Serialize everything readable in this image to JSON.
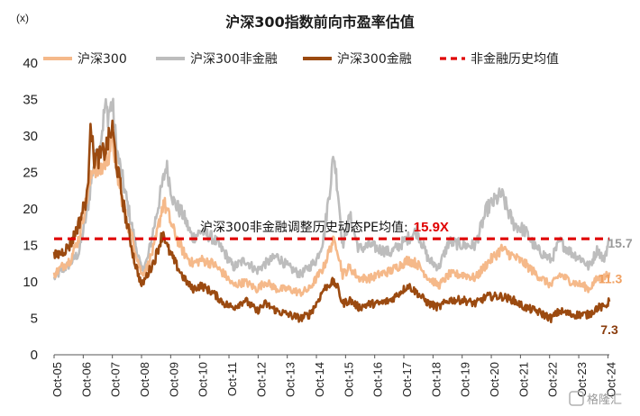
{
  "chart_data": {
    "type": "line",
    "title": "沪深300指数前向市盈率估值",
    "unit_label": "(x)",
    "ylim": [
      0,
      40
    ],
    "y_ticks": [
      "0",
      "5",
      "10",
      "15",
      "20",
      "25",
      "30",
      "35",
      "40"
    ],
    "x_ticks": [
      "Oct-05",
      "Oct-06",
      "Oct-07",
      "Oct-08",
      "Oct-09",
      "Oct-10",
      "Oct-11",
      "Oct-12",
      "Oct-13",
      "Oct-14",
      "Oct-15",
      "Oct-16",
      "Oct-17",
      "Oct-18",
      "Oct-19",
      "Oct-20",
      "Oct-21",
      "Oct-22",
      "Oct-23",
      "Oct-24"
    ],
    "x_range": [
      2005.75,
      2024.8
    ],
    "grid": false,
    "legend_position": "top",
    "series": [
      {
        "name": "沪深300",
        "color": "#f5b98a",
        "points": [
          [
            2005.75,
            11
          ],
          [
            2006.0,
            12
          ],
          [
            2006.3,
            13
          ],
          [
            2006.6,
            16
          ],
          [
            2006.9,
            22
          ],
          [
            2007.1,
            26
          ],
          [
            2007.3,
            25
          ],
          [
            2007.6,
            27
          ],
          [
            2007.75,
            30
          ],
          [
            2007.9,
            25
          ],
          [
            2008.2,
            19
          ],
          [
            2008.5,
            15
          ],
          [
            2008.75,
            11
          ],
          [
            2008.95,
            12
          ],
          [
            2009.2,
            15
          ],
          [
            2009.5,
            21
          ],
          [
            2009.6,
            20
          ],
          [
            2009.85,
            17
          ],
          [
            2010.2,
            14
          ],
          [
            2010.5,
            12.5
          ],
          [
            2010.8,
            13
          ],
          [
            2011.2,
            12.5
          ],
          [
            2011.6,
            11
          ],
          [
            2011.9,
            9.5
          ],
          [
            2012.3,
            10
          ],
          [
            2012.7,
            9
          ],
          [
            2013.0,
            10
          ],
          [
            2013.4,
            9
          ],
          [
            2013.8,
            9
          ],
          [
            2014.2,
            8.5
          ],
          [
            2014.5,
            9
          ],
          [
            2014.75,
            10.5
          ],
          [
            2015.0,
            12
          ],
          [
            2015.3,
            15.5
          ],
          [
            2015.45,
            15
          ],
          [
            2015.65,
            11
          ],
          [
            2015.9,
            12
          ],
          [
            2016.2,
            10.5
          ],
          [
            2016.6,
            10.5
          ],
          [
            2016.9,
            11
          ],
          [
            2017.3,
            11.5
          ],
          [
            2017.9,
            13
          ],
          [
            2018.2,
            12.5
          ],
          [
            2018.6,
            10.5
          ],
          [
            2018.95,
            9.5
          ],
          [
            2019.3,
            11
          ],
          [
            2019.8,
            11
          ],
          [
            2020.2,
            10.5
          ],
          [
            2020.6,
            12.5
          ],
          [
            2021.1,
            14.5
          ],
          [
            2021.5,
            13.5
          ],
          [
            2021.9,
            12.5
          ],
          [
            2022.3,
            11
          ],
          [
            2022.8,
            9.5
          ],
          [
            2023.1,
            11
          ],
          [
            2023.5,
            10
          ],
          [
            2023.9,
            9.5
          ],
          [
            2024.1,
            9
          ],
          [
            2024.4,
            10.5
          ],
          [
            2024.6,
            10.5
          ],
          [
            2024.8,
            11.3
          ]
        ]
      },
      {
        "name": "沪深300非金融",
        "color": "#bdbdbd",
        "points": [
          [
            2005.75,
            10.5
          ],
          [
            2006.0,
            11.5
          ],
          [
            2006.3,
            12.5
          ],
          [
            2006.6,
            14
          ],
          [
            2006.9,
            20
          ],
          [
            2007.1,
            26
          ],
          [
            2007.3,
            28
          ],
          [
            2007.5,
            34
          ],
          [
            2007.6,
            33
          ],
          [
            2007.75,
            34.5
          ],
          [
            2007.9,
            28
          ],
          [
            2008.2,
            22
          ],
          [
            2008.5,
            16
          ],
          [
            2008.75,
            11.5
          ],
          [
            2008.95,
            13
          ],
          [
            2009.2,
            18
          ],
          [
            2009.5,
            24
          ],
          [
            2009.6,
            26
          ],
          [
            2009.85,
            21
          ],
          [
            2010.2,
            19
          ],
          [
            2010.5,
            16
          ],
          [
            2010.8,
            17
          ],
          [
            2011.2,
            16
          ],
          [
            2011.6,
            14
          ],
          [
            2011.9,
            12
          ],
          [
            2012.3,
            13
          ],
          [
            2012.7,
            11.5
          ],
          [
            2013.0,
            12.5
          ],
          [
            2013.4,
            13.5
          ],
          [
            2013.8,
            12
          ],
          [
            2014.2,
            11
          ],
          [
            2014.5,
            12
          ],
          [
            2014.75,
            13
          ],
          [
            2015.0,
            16
          ],
          [
            2015.35,
            27.5
          ],
          [
            2015.5,
            22
          ],
          [
            2015.65,
            15
          ],
          [
            2015.9,
            19
          ],
          [
            2016.2,
            14.5
          ],
          [
            2016.6,
            15
          ],
          [
            2016.9,
            14.5
          ],
          [
            2017.3,
            14
          ],
          [
            2017.9,
            16
          ],
          [
            2018.2,
            17
          ],
          [
            2018.6,
            13
          ],
          [
            2018.95,
            12
          ],
          [
            2019.3,
            15.5
          ],
          [
            2019.8,
            15
          ],
          [
            2020.2,
            15
          ],
          [
            2020.6,
            20
          ],
          [
            2021.1,
            22
          ],
          [
            2021.5,
            18
          ],
          [
            2021.9,
            17
          ],
          [
            2022.3,
            14.5
          ],
          [
            2022.8,
            13
          ],
          [
            2023.1,
            15.5
          ],
          [
            2023.5,
            14
          ],
          [
            2023.9,
            13
          ],
          [
            2024.1,
            12
          ],
          [
            2024.4,
            14.5
          ],
          [
            2024.6,
            13
          ],
          [
            2024.8,
            15.7
          ]
        ]
      },
      {
        "name": "沪深300金融",
        "color": "#9b4a10",
        "points": [
          [
            2005.75,
            13.5
          ],
          [
            2006.0,
            14
          ],
          [
            2006.3,
            15
          ],
          [
            2006.6,
            18
          ],
          [
            2006.9,
            22
          ],
          [
            2007.0,
            33
          ],
          [
            2007.1,
            27
          ],
          [
            2007.3,
            27
          ],
          [
            2007.5,
            28
          ],
          [
            2007.75,
            31
          ],
          [
            2007.9,
            26
          ],
          [
            2008.2,
            19
          ],
          [
            2008.5,
            13
          ],
          [
            2008.75,
            9.5
          ],
          [
            2008.95,
            11
          ],
          [
            2009.2,
            13
          ],
          [
            2009.5,
            17
          ],
          [
            2009.6,
            15
          ],
          [
            2009.85,
            13
          ],
          [
            2010.2,
            10.5
          ],
          [
            2010.5,
            9
          ],
          [
            2010.8,
            9.5
          ],
          [
            2011.2,
            8.5
          ],
          [
            2011.6,
            7
          ],
          [
            2011.9,
            6.5
          ],
          [
            2012.3,
            7.5
          ],
          [
            2012.7,
            6
          ],
          [
            2013.0,
            7
          ],
          [
            2013.4,
            6
          ],
          [
            2013.8,
            5.5
          ],
          [
            2014.2,
            5
          ],
          [
            2014.5,
            5.5
          ],
          [
            2014.75,
            7
          ],
          [
            2015.0,
            9
          ],
          [
            2015.3,
            10
          ],
          [
            2015.45,
            9.5
          ],
          [
            2015.65,
            7
          ],
          [
            2015.9,
            7.5
          ],
          [
            2016.2,
            6.5
          ],
          [
            2016.6,
            7
          ],
          [
            2016.9,
            7
          ],
          [
            2017.3,
            7.5
          ],
          [
            2017.9,
            9.5
          ],
          [
            2018.2,
            8.5
          ],
          [
            2018.6,
            7
          ],
          [
            2018.95,
            6.5
          ],
          [
            2019.3,
            7.5
          ],
          [
            2019.8,
            7.5
          ],
          [
            2020.2,
            7
          ],
          [
            2020.6,
            8
          ],
          [
            2021.1,
            8
          ],
          [
            2021.5,
            7.5
          ],
          [
            2021.9,
            6.5
          ],
          [
            2022.3,
            6
          ],
          [
            2022.8,
            5
          ],
          [
            2023.1,
            6
          ],
          [
            2023.5,
            5.5
          ],
          [
            2023.9,
            5.5
          ],
          [
            2024.1,
            5.5
          ],
          [
            2024.4,
            6.5
          ],
          [
            2024.6,
            6.5
          ],
          [
            2024.8,
            7.3
          ]
        ]
      },
      {
        "name": "非金融历史均值",
        "color": "#e00000",
        "style": "dashed",
        "points": [
          [
            2005.75,
            15.9
          ],
          [
            2024.8,
            15.9
          ]
        ]
      }
    ],
    "annotation": {
      "text": "沪深300非金融调整历史动态PE均值:",
      "value": "15.9X"
    },
    "end_labels": [
      {
        "text": "15.7",
        "value": 15.7,
        "color": "#9a9a9a"
      },
      {
        "text": "11.3",
        "value": 11.3,
        "color": "#f0a060"
      },
      {
        "text": "7.3",
        "value": 7.3,
        "color": "#8a3c0c"
      }
    ]
  },
  "watermark": "格隆汇"
}
